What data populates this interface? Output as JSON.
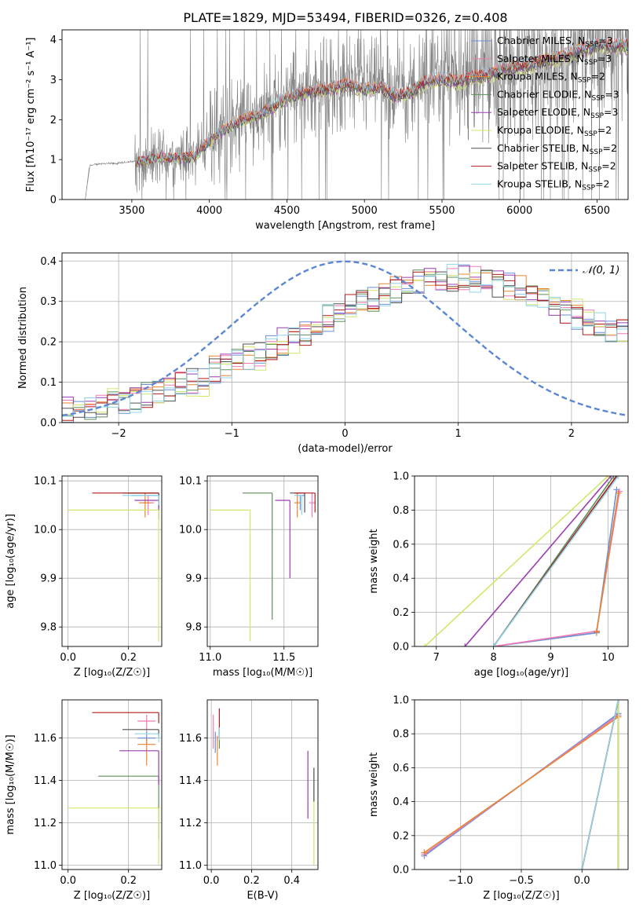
{
  "title": "PLATE=1829, MJD=53494, FIBERID=0326, z=0.408",
  "colors": {
    "Chabrier MILES": "#6a8fd6",
    "Salpeter MILES": "#f07ab4",
    "Kroupa MILES": "#e8862e",
    "Chabrier ELODIE": "#5c8f5c",
    "Salpeter ELODIE": "#9c3db0",
    "Kroupa ELODIE": "#cfe86a",
    "Chabrier STELIB": "#505050",
    "Salpeter STELIB": "#b01c1c",
    "Kroupa STELIB": "#8fd4e8",
    "data": "#808080",
    "normal": "#5b87d4"
  },
  "chart_data": [
    {
      "type": "line",
      "title": "PLATE=1829, MJD=53494, FIBERID=0326, z=0.408",
      "xlabel": "wavelength [Angstrom, rest frame]",
      "ylabel": "Flux [fλ10⁻¹⁷ erg cm⁻² s⁻¹ A⁻¹]",
      "xlim": [
        3050,
        6700
      ],
      "ylim": [
        0,
        4.25
      ],
      "xticks": [
        3500,
        4000,
        4500,
        5000,
        5500,
        6000,
        6500
      ],
      "yticks": [
        0,
        1,
        2,
        3,
        4
      ],
      "grid": false,
      "legend_position": "top-right",
      "series": [
        {
          "name": "data",
          "x": [
            3050,
            3200,
            3230,
            3300,
            3400,
            3500,
            3600,
            3700,
            3800,
            3900,
            4000,
            4100,
            4200,
            4300,
            4400,
            4500,
            4600,
            4700,
            4800,
            4900,
            5000,
            5100,
            5200,
            5300,
            5400,
            5500,
            5600,
            5700,
            5800,
            5900,
            6000,
            6100,
            6200,
            6300,
            6400,
            6500
          ],
          "y": [
            0,
            0,
            0.85,
            0.9,
            0.9,
            0.95,
            1.0,
            1.1,
            1.05,
            1.1,
            1.5,
            1.8,
            2.0,
            2.15,
            2.35,
            2.6,
            2.75,
            2.8,
            2.85,
            2.95,
            2.8,
            2.9,
            2.65,
            2.75,
            3.05,
            3.1,
            3.0,
            3.15,
            3.2,
            3.35,
            3.4,
            3.5,
            3.6,
            3.7,
            3.85,
            3.95
          ]
        },
        {
          "name": "Chabrier MILES, N_SSP=3",
          "legend": "Chabrier MILES, N",
          "sub": "SSP",
          "suffix": "=3"
        },
        {
          "name": "Salpeter MILES, N_SSP=3",
          "legend": "Salpeter MILES, N",
          "sub": "SSP",
          "suffix": "=3"
        },
        {
          "name": "Kroupa MILES, N_SSP=2",
          "legend": "Kroupa MILES, N",
          "sub": "SSP",
          "suffix": "=2"
        },
        {
          "name": "Chabrier ELODIE, N_SSP=3",
          "legend": "Chabrier ELODIE, N",
          "sub": "SSP",
          "suffix": "=3"
        },
        {
          "name": "Salpeter ELODIE, N_SSP=3",
          "legend": "Salpeter ELODIE, N",
          "sub": "SSP",
          "suffix": "=3"
        },
        {
          "name": "Kroupa ELODIE, N_SSP=2",
          "legend": "Kroupa ELODIE, N",
          "sub": "SSP",
          "suffix": "=2"
        },
        {
          "name": "Chabrier STELIB, N_SSP=2",
          "legend": "Chabrier STELIB, N",
          "sub": "SSP",
          "suffix": "=2"
        },
        {
          "name": "Salpeter STELIB, N_SSP=2",
          "legend": "Salpeter STELIB, N",
          "sub": "SSP",
          "suffix": "=2"
        },
        {
          "name": "Kroupa STELIB, N_SSP=2",
          "legend": "Kroupa STELIB, N",
          "sub": "SSP",
          "suffix": "=2"
        }
      ]
    },
    {
      "type": "histogram",
      "xlabel": "(data-model)/error",
      "ylabel": "Normed distribution",
      "xlim": [
        -2.5,
        2.5
      ],
      "ylim": [
        0,
        0.42
      ],
      "xticks": [
        -2,
        -1,
        0,
        1,
        2
      ],
      "yticks": [
        0.0,
        0.1,
        0.2,
        0.3,
        0.4
      ],
      "grid": true,
      "legend_position": "top-right",
      "reference_curve": {
        "name": "N(0,1)",
        "label": "𝒩(0, 1)",
        "mean": 0,
        "sigma": 1
      },
      "bin_edges_start": -2.5,
      "bin_width": 0.1,
      "mean_profile": [
        0.03,
        0.035,
        0.04,
        0.045,
        0.05,
        0.055,
        0.06,
        0.065,
        0.075,
        0.085,
        0.095,
        0.1,
        0.11,
        0.13,
        0.14,
        0.15,
        0.16,
        0.175,
        0.19,
        0.2,
        0.21,
        0.22,
        0.24,
        0.26,
        0.28,
        0.29,
        0.3,
        0.31,
        0.32,
        0.33,
        0.34,
        0.345,
        0.35,
        0.355,
        0.36,
        0.36,
        0.355,
        0.35,
        0.345,
        0.34,
        0.33,
        0.32,
        0.31,
        0.3,
        0.28,
        0.26,
        0.25,
        0.24,
        0.23,
        0.22
      ]
    },
    {
      "type": "scatter-errorbar",
      "xlabel": "Z [log₁₀(Z/Z☉)]",
      "ylabel": "age  [log₁₀(age/yr)]",
      "xlim": [
        -0.02,
        0.31
      ],
      "ylim": [
        9.76,
        10.11
      ],
      "xticks": [
        0.0,
        0.2
      ],
      "yticks": [
        9.8,
        9.9,
        10.0,
        10.1
      ],
      "grid": true,
      "points": [
        {
          "series": "Chabrier MILES",
          "x": 0.3,
          "y": 10.07,
          "xerr": [
            0.09,
            0.0
          ],
          "yerr": [
            0.03,
            0.0
          ]
        },
        {
          "series": "Salpeter MILES",
          "x": 0.265,
          "y": 10.055,
          "xerr": [
            0.02,
            0.02
          ],
          "yerr": [
            0.025,
            0.015
          ]
        },
        {
          "series": "Kroupa MILES",
          "x": 0.255,
          "y": 10.055,
          "xerr": [
            0.02,
            0.02
          ],
          "yerr": [
            0.03,
            0.02
          ]
        },
        {
          "series": "Chabrier ELODIE",
          "x": 0.3,
          "y": 10.075,
          "xerr": [
            0.12,
            0.0
          ],
          "yerr": [
            0.03,
            0.0
          ]
        },
        {
          "series": "Salpeter ELODIE",
          "x": 0.3,
          "y": 10.06,
          "xerr": [
            0.08,
            0.0
          ],
          "yerr": [
            0.04,
            0.0
          ]
        },
        {
          "series": "Kroupa ELODIE",
          "x": 0.3,
          "y": 10.04,
          "xerr": [
            0.3,
            0.0
          ],
          "yerr": [
            0.27,
            0.0
          ]
        },
        {
          "series": "Chabrier STELIB",
          "x": 0.3,
          "y": 10.075,
          "xerr": [
            0.1,
            0.0
          ],
          "yerr": [
            0.02,
            0.0
          ]
        },
        {
          "series": "Salpeter STELIB",
          "x": 0.3,
          "y": 10.075,
          "xerr": [
            0.22,
            0.0
          ],
          "yerr": [
            0.0,
            0.0
          ]
        },
        {
          "series": "Kroupa STELIB",
          "x": 0.3,
          "y": 10.07,
          "xerr": [
            0.12,
            0.0
          ],
          "yerr": [
            0.02,
            0.0
          ]
        }
      ]
    },
    {
      "type": "scatter-errorbar",
      "xlabel": "mass [log₁₀(M/M☉)]",
      "ylabel": "",
      "xlim": [
        10.98,
        11.73
      ],
      "ylim": [
        9.76,
        10.11
      ],
      "xticks": [
        11.0,
        11.5
      ],
      "yticks": [
        9.8,
        9.9,
        10.0,
        10.1
      ],
      "grid": true,
      "points": [
        {
          "series": "Chabrier MILES",
          "x": 11.61,
          "y": 10.07,
          "xerr": [
            0.03,
            0.03
          ],
          "yerr": [
            0.03,
            0.0
          ]
        },
        {
          "series": "Salpeter MILES",
          "x": 11.69,
          "y": 10.055,
          "xerr": [
            0.02,
            0.02
          ],
          "yerr": [
            0.03,
            0.02
          ]
        },
        {
          "series": "Kroupa MILES",
          "x": 11.59,
          "y": 10.055,
          "xerr": [
            0.02,
            0.02
          ],
          "yerr": [
            0.03,
            0.02
          ]
        },
        {
          "series": "Chabrier ELODIE",
          "x": 11.42,
          "y": 10.075,
          "xerr": [
            0.2,
            0.0
          ],
          "yerr": [
            0.26,
            0.0
          ]
        },
        {
          "series": "Salpeter ELODIE",
          "x": 11.54,
          "y": 10.06,
          "xerr": [
            0.1,
            0.0
          ],
          "yerr": [
            0.16,
            0.0
          ]
        },
        {
          "series": "Kroupa ELODIE",
          "x": 11.27,
          "y": 10.04,
          "xerr": [
            0.27,
            0.0
          ],
          "yerr": [
            0.27,
            0.0
          ]
        },
        {
          "series": "Chabrier STELIB",
          "x": 11.64,
          "y": 10.075,
          "xerr": [
            0.1,
            0.0
          ],
          "yerr": [
            0.04,
            0.0
          ]
        },
        {
          "series": "Salpeter STELIB",
          "x": 11.71,
          "y": 10.075,
          "xerr": [
            0.14,
            0.0
          ],
          "yerr": [
            0.04,
            0.0
          ]
        },
        {
          "series": "Kroupa STELIB",
          "x": 11.62,
          "y": 10.07,
          "xerr": [
            0.05,
            0.0
          ],
          "yerr": [
            0.04,
            0.0
          ]
        }
      ]
    },
    {
      "type": "line",
      "xlabel": "age  [log₁₀(age/yr)]",
      "ylabel": "mass weight",
      "xlim": [
        6.62,
        10.35
      ],
      "ylim": [
        0,
        1.0
      ],
      "xticks": [
        7,
        8,
        9,
        10
      ],
      "yticks": [
        0.0,
        0.2,
        0.4,
        0.6,
        0.8,
        1.0
      ],
      "grid": true,
      "series": [
        {
          "name": "Chabrier MILES",
          "x": [
            8.0,
            9.8,
            10.15
          ],
          "y": [
            0.0,
            0.08,
            0.92
          ]
        },
        {
          "name": "Salpeter MILES",
          "x": [
            8.0,
            9.8,
            10.2
          ],
          "y": [
            0.0,
            0.09,
            0.91
          ]
        },
        {
          "name": "Kroupa MILES",
          "x": [
            9.8,
            10.18
          ],
          "y": [
            0.085,
            0.9
          ]
        },
        {
          "name": "Chabrier ELODIE",
          "x": [
            8.0,
            10.1
          ],
          "y": [
            0.0,
            1.0
          ]
        },
        {
          "name": "Salpeter ELODIE",
          "x": [
            7.5,
            10.05
          ],
          "y": [
            0.0,
            1.0
          ]
        },
        {
          "name": "Kroupa ELODIE",
          "x": [
            6.8,
            10.0
          ],
          "y": [
            0.0,
            1.0
          ]
        },
        {
          "name": "Chabrier STELIB",
          "x": [
            8.0,
            10.15
          ],
          "y": [
            0.0,
            1.0
          ]
        },
        {
          "name": "Salpeter STELIB",
          "x": [
            8.0,
            10.15
          ],
          "y": [
            0.0,
            1.0
          ]
        },
        {
          "name": "Kroupa STELIB",
          "x": [
            8.0,
            10.18
          ],
          "y": [
            0.0,
            1.0
          ]
        }
      ]
    },
    {
      "type": "scatter-errorbar",
      "xlabel": "Z [log₁₀(Z/Z☉)]",
      "ylabel": "mass [log₁₀(M/M☉)]",
      "xlim": [
        -0.02,
        0.31
      ],
      "ylim": [
        10.98,
        11.78
      ],
      "xticks": [
        0.0,
        0.2
      ],
      "yticks": [
        11.0,
        11.2,
        11.4,
        11.6
      ],
      "grid": true,
      "points": [
        {
          "series": "Chabrier MILES",
          "x": 0.26,
          "y": 11.6,
          "xerr": [
            0.03,
            0.03
          ],
          "yerr": [
            0.03,
            0.03
          ]
        },
        {
          "series": "Salpeter MILES",
          "x": 0.26,
          "y": 11.68,
          "xerr": [
            0.03,
            0.03
          ],
          "yerr": [
            0.05,
            0.03
          ]
        },
        {
          "series": "Kroupa MILES",
          "x": 0.26,
          "y": 11.57,
          "xerr": [
            0.03,
            0.03
          ],
          "yerr": [
            0.1,
            0.03
          ]
        },
        {
          "series": "Chabrier ELODIE",
          "x": 0.3,
          "y": 11.42,
          "xerr": [
            0.2,
            0.0
          ],
          "yerr": [
            0.3,
            0.0
          ]
        },
        {
          "series": "Salpeter ELODIE",
          "x": 0.3,
          "y": 11.54,
          "xerr": [
            0.13,
            0.0
          ],
          "yerr": [
            0.16,
            0.0
          ]
        },
        {
          "series": "Kroupa ELODIE",
          "x": 0.3,
          "y": 11.27,
          "xerr": [
            0.3,
            0.0
          ],
          "yerr": [
            0.27,
            0.0
          ]
        },
        {
          "series": "Chabrier STELIB",
          "x": 0.3,
          "y": 11.64,
          "xerr": [
            0.12,
            0.0
          ],
          "yerr": [
            0.04,
            0.0
          ]
        },
        {
          "series": "Salpeter STELIB",
          "x": 0.3,
          "y": 11.72,
          "xerr": [
            0.22,
            0.0
          ],
          "yerr": [
            0.05,
            0.0
          ]
        },
        {
          "series": "Kroupa STELIB",
          "x": 0.3,
          "y": 11.62,
          "xerr": [
            0.08,
            0.0
          ],
          "yerr": [
            0.04,
            0.0
          ]
        }
      ]
    },
    {
      "type": "scatter-errorbar",
      "xlabel": "E(B-V)",
      "ylabel": "",
      "xlim": [
        -0.02,
        0.53
      ],
      "ylim": [
        10.98,
        11.78
      ],
      "xticks": [
        0.0,
        0.2,
        0.4
      ],
      "yticks": [
        11.0,
        11.2,
        11.4,
        11.6
      ],
      "grid": true,
      "points": [
        {
          "series": "Chabrier MILES",
          "x": 0.02,
          "y": 11.58,
          "xerr": [
            0,
            0
          ],
          "yerr": [
            0.05,
            0.05
          ]
        },
        {
          "series": "Salpeter MILES",
          "x": 0.01,
          "y": 11.63,
          "xerr": [
            0,
            0
          ],
          "yerr": [
            0.08,
            0.08
          ]
        },
        {
          "series": "Kroupa MILES",
          "x": 0.03,
          "y": 11.55,
          "xerr": [
            0,
            0
          ],
          "yerr": [
            0.08,
            0.06
          ]
        },
        {
          "series": "Chabrier ELODIE",
          "x": 0.04,
          "y": 11.6,
          "xerr": [
            0,
            0
          ],
          "yerr": [
            0.05,
            0.05
          ]
        },
        {
          "series": "Salpeter ELODIE",
          "x": 0.48,
          "y": 11.38,
          "xerr": [
            0,
            0
          ],
          "yerr": [
            0.16,
            0.16
          ]
        },
        {
          "series": "Kroupa ELODIE",
          "x": 0.51,
          "y": 11.22,
          "xerr": [
            0,
            0
          ],
          "yerr": [
            0.22,
            0.22
          ]
        },
        {
          "series": "Chabrier STELIB",
          "x": 0.51,
          "y": 11.38,
          "xerr": [
            0,
            0
          ],
          "yerr": [
            0.08,
            0.08
          ]
        },
        {
          "series": "Salpeter STELIB",
          "x": 0.04,
          "y": 11.67,
          "xerr": [
            0,
            0
          ],
          "yerr": [
            0.07,
            0.07
          ]
        },
        {
          "series": "Kroupa STELIB",
          "x": 0.04,
          "y": 11.62,
          "xerr": [
            0,
            0
          ],
          "yerr": [
            0.03,
            0.03
          ]
        }
      ]
    },
    {
      "type": "line",
      "xlabel": "Z [log₁₀(Z/Z☉)]",
      "ylabel": "mass weight",
      "xlim": [
        -1.38,
        0.38
      ],
      "ylim": [
        0,
        1.0
      ],
      "xticks": [
        -1.0,
        -0.5,
        0.0
      ],
      "yticks": [
        0.0,
        0.2,
        0.4,
        0.6,
        0.8,
        1.0
      ],
      "grid": true,
      "series": [
        {
          "name": "Chabrier MILES",
          "x": [
            -1.3,
            0.3
          ],
          "y": [
            0.08,
            0.92
          ]
        },
        {
          "name": "Salpeter MILES",
          "x": [
            -1.3,
            0.3
          ],
          "y": [
            0.09,
            0.91
          ]
        },
        {
          "name": "Kroupa MILES",
          "x": [
            -1.3,
            0.3
          ],
          "y": [
            0.1,
            0.9
          ]
        },
        {
          "name": "Chabrier ELODIE",
          "x": [
            0.3,
            0.3
          ],
          "y": [
            0.0,
            1.0
          ]
        },
        {
          "name": "Salpeter ELODIE",
          "x": [
            0.3,
            0.3
          ],
          "y": [
            0.0,
            1.0
          ]
        },
        {
          "name": "Kroupa ELODIE",
          "x": [
            0.3,
            0.3
          ],
          "y": [
            0.0,
            1.0
          ]
        },
        {
          "name": "Chabrier STELIB",
          "x": [
            0.0,
            0.3
          ],
          "y": [
            0.0,
            1.0
          ]
        },
        {
          "name": "Salpeter STELIB",
          "x": [
            0.0,
            0.3
          ],
          "y": [
            0.0,
            1.0
          ]
        },
        {
          "name": "Kroupa STELIB",
          "x": [
            0.0,
            0.3
          ],
          "y": [
            0.0,
            1.0
          ]
        }
      ]
    }
  ]
}
